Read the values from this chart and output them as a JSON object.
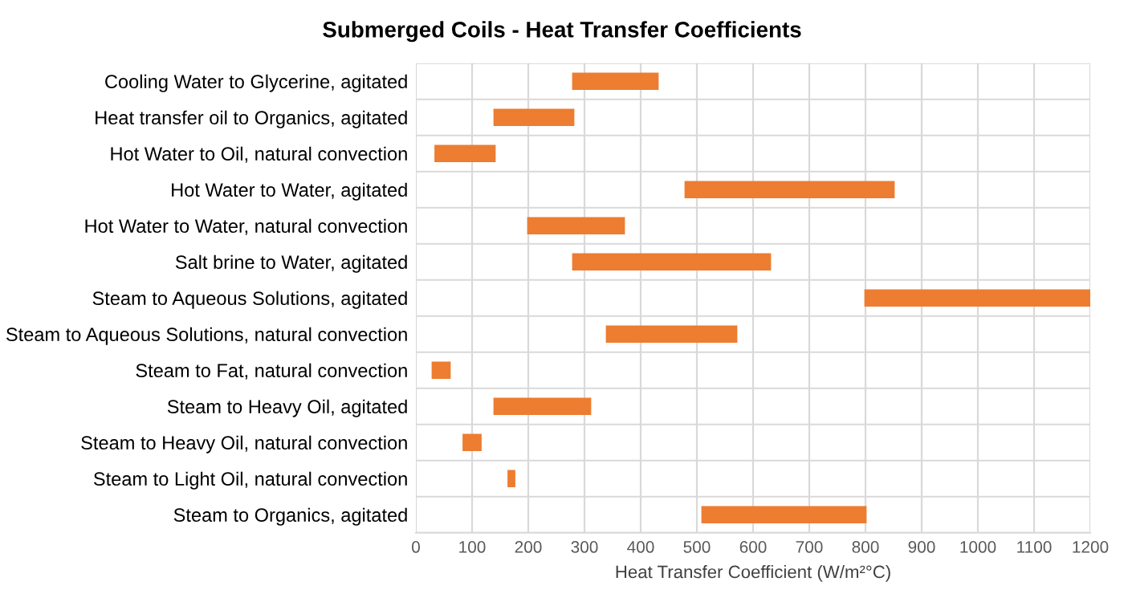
{
  "chart_data": {
    "type": "bar",
    "orientation": "horizontal",
    "title": "Submerged Coils - Heat Transfer Coefficients",
    "xlabel": "Heat Transfer Coefficient (W/m²°C)",
    "categories": [
      "Cooling Water to Glycerine, agitated",
      "Heat transfer oil to Organics, agitated",
      "Hot Water to Oil, natural convection",
      "Hot Water to Water, agitated",
      "Hot Water to Water, natural convection",
      "Salt brine to Water, agitated",
      "Steam to Aqueous Solutions, agitated",
      "Steam to Aqueous Solutions, natural convection",
      "Steam to Fat, natural convection",
      "Steam to Heavy Oil, agitated",
      "Steam to Heavy Oil, natural convection",
      "Steam to Light Oil, natural convection",
      "Steam to Organics, agitated"
    ],
    "base": [
      280,
      140,
      35,
      480,
      200,
      280,
      800,
      340,
      30,
      140,
      85,
      165,
      510
    ],
    "values": [
      150,
      140,
      105,
      370,
      170,
      350,
      400,
      230,
      30,
      170,
      30,
      10,
      290
    ],
    "color": "#ed7d31",
    "xlim": [
      0,
      1200
    ],
    "xticks": [
      0,
      100,
      200,
      300,
      400,
      500,
      600,
      700,
      800,
      900,
      1000,
      1100,
      1200
    ],
    "grid": true
  }
}
